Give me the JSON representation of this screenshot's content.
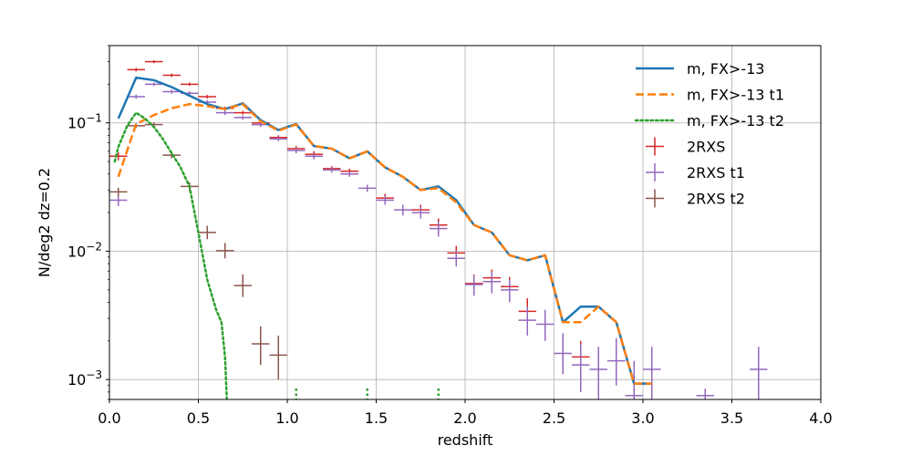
{
  "chart_data": {
    "type": "line",
    "title": "",
    "xlabel": "redshift",
    "ylabel": "N/deg2  dz=0.2",
    "xlim": [
      0,
      4
    ],
    "ylim": [
      0.0007,
      0.4
    ],
    "yscale": "log",
    "grid": true,
    "legend_position": "top-right",
    "x_ticks": [
      "0.0",
      "0.5",
      "1.0",
      "1.5",
      "2.0",
      "2.5",
      "3.0",
      "3.5",
      "4.0"
    ],
    "x_tick_values": [
      0,
      0.5,
      1.0,
      1.5,
      2.0,
      2.5,
      3.0,
      3.5,
      4.0
    ],
    "y_ticks": [
      {
        "value": 0.001,
        "base": "10",
        "exp": "−3"
      },
      {
        "value": 0.01,
        "base": "10",
        "exp": "−2"
      },
      {
        "value": 0.1,
        "base": "10",
        "exp": "−1"
      }
    ],
    "lines": [
      {
        "name": "m, FX>-13",
        "color": "#1f77b4",
        "style": "solid",
        "x": [
          0.05,
          0.15,
          0.25,
          0.35,
          0.45,
          0.55,
          0.65,
          0.75,
          0.85,
          0.95,
          1.05,
          1.15,
          1.25,
          1.35,
          1.45,
          1.55,
          1.65,
          1.75,
          1.85,
          1.95,
          2.05,
          2.15,
          2.25,
          2.35,
          2.45,
          2.55,
          2.65,
          2.75,
          2.85,
          2.95,
          3.05
        ],
        "y": [
          0.108,
          0.225,
          0.215,
          0.19,
          0.163,
          0.14,
          0.128,
          0.142,
          0.105,
          0.088,
          0.098,
          0.066,
          0.063,
          0.053,
          0.06,
          0.045,
          0.038,
          0.03,
          0.032,
          0.025,
          0.016,
          0.014,
          0.0093,
          0.0085,
          0.0093,
          0.0028,
          0.0037,
          0.0037,
          0.0028,
          0.00093,
          0.00093
        ]
      },
      {
        "name": "m, FX>-13 t1",
        "color": "#ff7f0e",
        "style": "dashed",
        "x": [
          0.05,
          0.15,
          0.25,
          0.35,
          0.45,
          0.55,
          0.65,
          0.75,
          0.85,
          0.95,
          1.05,
          1.15,
          1.25,
          1.35,
          1.45,
          1.55,
          1.65,
          1.75,
          1.85,
          1.95,
          2.05,
          2.15,
          2.25,
          2.35,
          2.45,
          2.55,
          2.65,
          2.75,
          2.85,
          2.95,
          3.05
        ],
        "y": [
          0.038,
          0.098,
          0.115,
          0.13,
          0.14,
          0.135,
          0.128,
          0.14,
          0.103,
          0.087,
          0.097,
          0.066,
          0.063,
          0.053,
          0.06,
          0.045,
          0.038,
          0.03,
          0.031,
          0.024,
          0.016,
          0.014,
          0.0093,
          0.0085,
          0.0093,
          0.0028,
          0.0028,
          0.0037,
          0.0028,
          0.00093,
          0.00093
        ]
      },
      {
        "name": "m, FX>-13 t2",
        "color": "#2ca02c",
        "style": "dotted",
        "x": [
          0.03,
          0.05,
          0.1,
          0.15,
          0.2,
          0.25,
          0.3,
          0.35,
          0.4,
          0.45,
          0.5,
          0.55,
          0.6,
          0.63,
          0.65,
          0.66
        ],
        "y": [
          0.05,
          0.065,
          0.095,
          0.12,
          0.108,
          0.093,
          0.075,
          0.058,
          0.045,
          0.032,
          0.014,
          0.006,
          0.0035,
          0.0028,
          0.0015,
          0.0007
        ]
      }
    ],
    "stray_points": [
      {
        "x": 1.05,
        "y": 0.00078,
        "color": "#2ca02c"
      },
      {
        "x": 1.45,
        "y": 0.00078,
        "color": "#2ca02c"
      },
      {
        "x": 1.85,
        "y": 0.00078,
        "color": "#2ca02c"
      }
    ],
    "errorbars": [
      {
        "name": "2RXS",
        "color": "#d62728",
        "points": [
          {
            "x": 0.05,
            "y": 0.055,
            "lo": 0.051,
            "hi": 0.059
          },
          {
            "x": 0.15,
            "y": 0.26,
            "lo": 0.252,
            "hi": 0.268
          },
          {
            "x": 0.25,
            "y": 0.3,
            "lo": 0.292,
            "hi": 0.308
          },
          {
            "x": 0.35,
            "y": 0.235,
            "lo": 0.228,
            "hi": 0.242
          },
          {
            "x": 0.45,
            "y": 0.2,
            "lo": 0.194,
            "hi": 0.206
          },
          {
            "x": 0.55,
            "y": 0.16,
            "lo": 0.155,
            "hi": 0.165
          },
          {
            "x": 0.65,
            "y": 0.13,
            "lo": 0.126,
            "hi": 0.134
          },
          {
            "x": 0.75,
            "y": 0.12,
            "lo": 0.116,
            "hi": 0.124
          },
          {
            "x": 0.85,
            "y": 0.1,
            "lo": 0.097,
            "hi": 0.103
          },
          {
            "x": 0.95,
            "y": 0.077,
            "lo": 0.074,
            "hi": 0.08
          },
          {
            "x": 1.05,
            "y": 0.063,
            "lo": 0.06,
            "hi": 0.066
          },
          {
            "x": 1.15,
            "y": 0.057,
            "lo": 0.054,
            "hi": 0.06
          },
          {
            "x": 1.25,
            "y": 0.044,
            "lo": 0.042,
            "hi": 0.046
          },
          {
            "x": 1.35,
            "y": 0.042,
            "lo": 0.04,
            "hi": 0.044
          },
          {
            "x": 1.55,
            "y": 0.026,
            "lo": 0.024,
            "hi": 0.028
          },
          {
            "x": 1.75,
            "y": 0.021,
            "lo": 0.019,
            "hi": 0.023
          },
          {
            "x": 1.85,
            "y": 0.016,
            "lo": 0.014,
            "hi": 0.018
          },
          {
            "x": 1.95,
            "y": 0.0097,
            "lo": 0.0085,
            "hi": 0.011
          },
          {
            "x": 2.05,
            "y": 0.0056,
            "lo": 0.0047,
            "hi": 0.0066
          },
          {
            "x": 2.15,
            "y": 0.0062,
            "lo": 0.0052,
            "hi": 0.0072
          },
          {
            "x": 2.25,
            "y": 0.0053,
            "lo": 0.0044,
            "hi": 0.0063
          },
          {
            "x": 2.35,
            "y": 0.0034,
            "lo": 0.0027,
            "hi": 0.0043
          },
          {
            "x": 2.65,
            "y": 0.0015,
            "lo": 0.001,
            "hi": 0.002
          }
        ]
      },
      {
        "name": "2RXS t1",
        "color": "#9467bd",
        "points": [
          {
            "x": 0.05,
            "y": 0.025,
            "lo": 0.0225,
            "hi": 0.0275
          },
          {
            "x": 0.15,
            "y": 0.16,
            "lo": 0.154,
            "hi": 0.166
          },
          {
            "x": 0.25,
            "y": 0.2,
            "lo": 0.194,
            "hi": 0.206
          },
          {
            "x": 0.35,
            "y": 0.175,
            "lo": 0.169,
            "hi": 0.181
          },
          {
            "x": 0.45,
            "y": 0.17,
            "lo": 0.164,
            "hi": 0.176
          },
          {
            "x": 0.55,
            "y": 0.145,
            "lo": 0.14,
            "hi": 0.15
          },
          {
            "x": 0.65,
            "y": 0.12,
            "lo": 0.115,
            "hi": 0.125
          },
          {
            "x": 0.75,
            "y": 0.11,
            "lo": 0.106,
            "hi": 0.114
          },
          {
            "x": 0.85,
            "y": 0.097,
            "lo": 0.093,
            "hi": 0.101
          },
          {
            "x": 0.95,
            "y": 0.075,
            "lo": 0.072,
            "hi": 0.078
          },
          {
            "x": 1.05,
            "y": 0.061,
            "lo": 0.058,
            "hi": 0.064
          },
          {
            "x": 1.15,
            "y": 0.055,
            "lo": 0.052,
            "hi": 0.058
          },
          {
            "x": 1.25,
            "y": 0.043,
            "lo": 0.041,
            "hi": 0.045
          },
          {
            "x": 1.35,
            "y": 0.04,
            "lo": 0.038,
            "hi": 0.042
          },
          {
            "x": 1.45,
            "y": 0.031,
            "lo": 0.029,
            "hi": 0.033
          },
          {
            "x": 1.55,
            "y": 0.025,
            "lo": 0.023,
            "hi": 0.027
          },
          {
            "x": 1.65,
            "y": 0.021,
            "lo": 0.019,
            "hi": 0.023
          },
          {
            "x": 1.75,
            "y": 0.02,
            "lo": 0.018,
            "hi": 0.022
          },
          {
            "x": 1.85,
            "y": 0.015,
            "lo": 0.013,
            "hi": 0.017
          },
          {
            "x": 1.95,
            "y": 0.0088,
            "lo": 0.0076,
            "hi": 0.01
          },
          {
            "x": 2.05,
            "y": 0.0055,
            "lo": 0.0045,
            "hi": 0.0065
          },
          {
            "x": 2.15,
            "y": 0.0058,
            "lo": 0.0047,
            "hi": 0.0069
          },
          {
            "x": 2.25,
            "y": 0.005,
            "lo": 0.004,
            "hi": 0.006
          },
          {
            "x": 2.35,
            "y": 0.0029,
            "lo": 0.0022,
            "hi": 0.0037
          },
          {
            "x": 2.45,
            "y": 0.0027,
            "lo": 0.002,
            "hi": 0.0035
          },
          {
            "x": 2.55,
            "y": 0.0016,
            "lo": 0.0011,
            "hi": 0.0023
          },
          {
            "x": 2.65,
            "y": 0.0013,
            "lo": 0.0008,
            "hi": 0.0019
          },
          {
            "x": 2.75,
            "y": 0.0012,
            "lo": 0.0007,
            "hi": 0.0018
          },
          {
            "x": 2.85,
            "y": 0.0014,
            "lo": 0.0009,
            "hi": 0.0021
          },
          {
            "x": 2.95,
            "y": 0.00075,
            "lo": 0.0007,
            "hi": 0.0014
          },
          {
            "x": 3.05,
            "y": 0.0012,
            "lo": 0.0007,
            "hi": 0.0018
          },
          {
            "x": 3.35,
            "y": 0.00075,
            "lo": 0.0007,
            "hi": 0.00085
          },
          {
            "x": 3.65,
            "y": 0.0012,
            "lo": 0.0007,
            "hi": 0.0018
          }
        ]
      },
      {
        "name": "2RXS t2",
        "color": "#8c564b",
        "points": [
          {
            "x": 0.05,
            "y": 0.029,
            "lo": 0.0268,
            "hi": 0.0312
          },
          {
            "x": 0.15,
            "y": 0.095,
            "lo": 0.091,
            "hi": 0.099
          },
          {
            "x": 0.25,
            "y": 0.097,
            "lo": 0.093,
            "hi": 0.101
          },
          {
            "x": 0.35,
            "y": 0.056,
            "lo": 0.053,
            "hi": 0.059
          },
          {
            "x": 0.45,
            "y": 0.032,
            "lo": 0.0295,
            "hi": 0.0345
          },
          {
            "x": 0.55,
            "y": 0.014,
            "lo": 0.0124,
            "hi": 0.0158
          },
          {
            "x": 0.65,
            "y": 0.0101,
            "lo": 0.0088,
            "hi": 0.0116
          },
          {
            "x": 0.75,
            "y": 0.0054,
            "lo": 0.0044,
            "hi": 0.0066
          },
          {
            "x": 0.85,
            "y": 0.0019,
            "lo": 0.0013,
            "hi": 0.0026
          },
          {
            "x": 0.95,
            "y": 0.00155,
            "lo": 0.001,
            "hi": 0.0022
          }
        ]
      }
    ]
  }
}
